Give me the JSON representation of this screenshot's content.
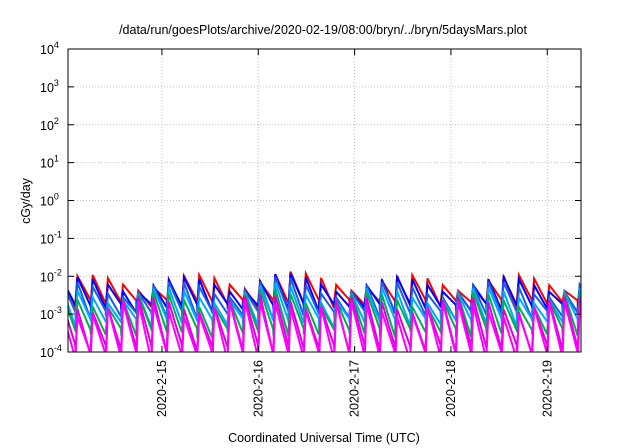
{
  "chart_data": {
    "type": "line",
    "title": "/data/run/goesPlots/archive/2020-02-19/08:00/bryn/../bryn/5daysMars.plot",
    "xlabel": "Coordinated Universal Time (UTC)",
    "ylabel": "cGy/day",
    "x_tick_labels": [
      "2020-2-15",
      "2020-2-16",
      "2020-2-17",
      "2020-2-18",
      "2020-2-19"
    ],
    "x_ticks_days": [
      1,
      2,
      3,
      4,
      5
    ],
    "x_range_days": [
      0.025,
      5.35
    ],
    "x_day_zero": "2020-2-14",
    "y_log_scale": true,
    "ylim": [
      0.0001,
      10000
    ],
    "y_tick_labels": [
      {
        "base": "10",
        "exp": "4"
      },
      {
        "base": "10",
        "exp": "3"
      },
      {
        "base": "10",
        "exp": "2"
      },
      {
        "base": "10",
        "exp": "1"
      },
      {
        "base": "10",
        "exp": "0"
      },
      {
        "base": "10",
        "exp": "-1"
      },
      {
        "base": "10",
        "exp": "-2"
      },
      {
        "base": "10",
        "exp": "-3"
      },
      {
        "base": "10",
        "exp": "-4"
      }
    ],
    "grid": true,
    "sawtooth_period_days": 0.158,
    "sawtooth_decay_fraction": 0.55,
    "series": [
      {
        "color": "#ff0000",
        "peak": 0.0075,
        "trough": 0.0022
      },
      {
        "color": "#0000ff",
        "peak": 0.0065,
        "trough": 0.0017
      },
      {
        "color": "#1a5fe0",
        "peak": 0.005,
        "trough": 0.0011
      },
      {
        "color": "#00aaff",
        "peak": 0.0035,
        "trough": 0.0007
      },
      {
        "color": "#00b050",
        "peak": 0.0026,
        "trough": 0.00038
      },
      {
        "color": "#dd00dd",
        "peak": 0.002,
        "trough": 0.00014
      },
      {
        "color": "#ff00ff",
        "peak": 0.0015,
        "trough": 9e-05
      }
    ]
  }
}
